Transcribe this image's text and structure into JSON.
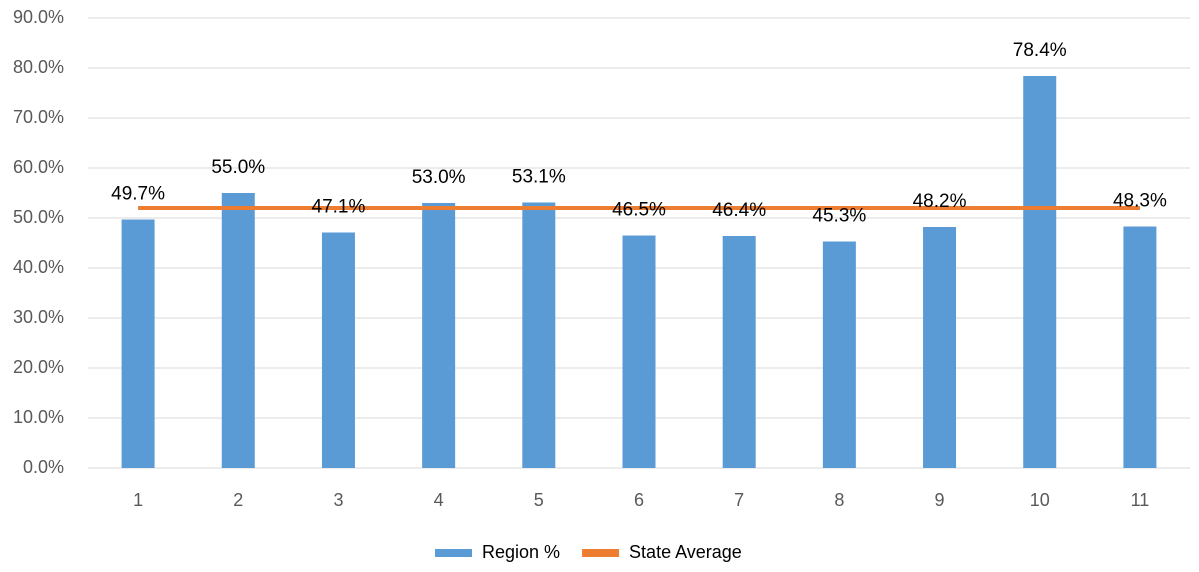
{
  "chart_data": {
    "type": "bar",
    "categories": [
      "1",
      "2",
      "3",
      "4",
      "5",
      "6",
      "7",
      "8",
      "9",
      "10",
      "11"
    ],
    "series": [
      {
        "name": "Region %",
        "type": "bar",
        "color": "#5b9bd5",
        "values": [
          49.7,
          55.0,
          47.1,
          53.0,
          53.1,
          46.5,
          46.4,
          45.3,
          48.2,
          78.4,
          48.3
        ],
        "value_labels": [
          "49.7%",
          "55.0%",
          "47.1%",
          "53.0%",
          "53.1%",
          "46.5%",
          "46.4%",
          "45.3%",
          "48.2%",
          "78.4%",
          "48.3%"
        ]
      },
      {
        "name": "State Average",
        "type": "line",
        "color": "#ed7d31",
        "values": [
          52.0,
          52.0,
          52.0,
          52.0,
          52.0,
          52.0,
          52.0,
          52.0,
          52.0,
          52.0,
          52.0
        ]
      }
    ],
    "ylim": [
      0,
      90
    ],
    "yticks": [
      {
        "value": 0,
        "label": "0.0%"
      },
      {
        "value": 10,
        "label": "10.0%"
      },
      {
        "value": 20,
        "label": "20.0%"
      },
      {
        "value": 30,
        "label": "30.0%"
      },
      {
        "value": 40,
        "label": "40.0%"
      },
      {
        "value": 50,
        "label": "50.0%"
      },
      {
        "value": 60,
        "label": "60.0%"
      },
      {
        "value": 70,
        "label": "70.0%"
      },
      {
        "value": 80,
        "label": "80.0%"
      },
      {
        "value": 90,
        "label": "90.0%"
      }
    ],
    "grid": true,
    "legend": "bottom"
  }
}
